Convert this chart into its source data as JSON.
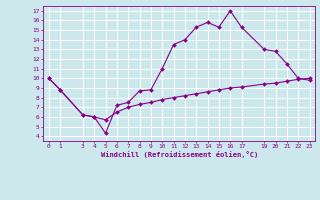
{
  "xlabel": "Windchill (Refroidissement éolien,°C)",
  "line1_x": [
    0,
    1,
    3,
    4,
    5,
    6,
    7,
    8,
    9,
    10,
    11,
    12,
    13,
    14,
    15,
    16,
    17,
    19,
    20,
    21,
    22,
    23
  ],
  "line1_y": [
    10,
    8.8,
    6.2,
    6.0,
    4.3,
    7.2,
    7.5,
    8.7,
    8.8,
    11.0,
    13.5,
    14.0,
    15.3,
    15.8,
    15.3,
    17.0,
    15.3,
    13.0,
    12.8,
    11.5,
    10.0,
    9.8
  ],
  "line2_x": [
    0,
    1,
    3,
    4,
    5,
    6,
    7,
    8,
    9,
    10,
    11,
    12,
    13,
    14,
    15,
    16,
    17,
    19,
    20,
    21,
    22,
    23
  ],
  "line2_y": [
    10,
    8.8,
    6.2,
    6.0,
    5.7,
    6.5,
    7.0,
    7.3,
    7.5,
    7.8,
    8.0,
    8.2,
    8.4,
    8.6,
    8.8,
    9.0,
    9.1,
    9.4,
    9.5,
    9.7,
    9.9,
    10.0
  ],
  "line_color": "#880088",
  "bg_color": "#cce8ec",
  "grid_color": "#ffffff",
  "ylim": [
    3.5,
    17.5
  ],
  "xlim": [
    -0.5,
    23.5
  ],
  "yticks": [
    4,
    5,
    6,
    7,
    8,
    9,
    10,
    11,
    12,
    13,
    14,
    15,
    16,
    17
  ],
  "xticks": [
    0,
    1,
    3,
    4,
    5,
    6,
    7,
    8,
    9,
    10,
    11,
    12,
    13,
    14,
    15,
    16,
    17,
    19,
    20,
    21,
    22,
    23
  ],
  "markersize": 2.0,
  "linewidth": 0.8
}
